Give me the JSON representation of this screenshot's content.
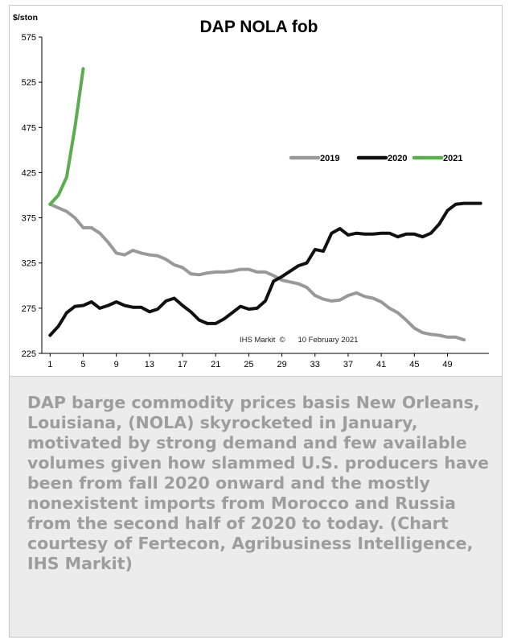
{
  "caption": "DAP barge commodity prices basis New Orleans, Louisiana, (NOLA) skyrocketed in January, motivated by strong demand and few available volumes given how slammed U.S. producers have been from fall 2020 onward and the mostly nonexistent imports from Morocco and Russia from the second half of 2020 to today. (Chart courtesy of Fertecon, Agribusiness Intelligence, IHS Markit)",
  "chart_data": {
    "type": "line",
    "title": "DAP NOLA fob",
    "ylabel": "$/ston",
    "xlabel": "",
    "ylim": [
      225,
      575
    ],
    "yticks": [
      225,
      275,
      325,
      375,
      425,
      475,
      525,
      575
    ],
    "xlim": [
      0,
      54
    ],
    "xticks": [
      1,
      5,
      9,
      13,
      17,
      21,
      25,
      29,
      33,
      37,
      41,
      45,
      49
    ],
    "grid": false,
    "legend": "right",
    "source_note": "IHS Markit  ©      10 February 2021",
    "series": [
      {
        "name": "2019",
        "color": "#999999",
        "x": [
          1,
          2,
          3,
          4,
          5,
          6,
          7,
          8,
          9,
          10,
          11,
          12,
          13,
          14,
          15,
          16,
          17,
          18,
          19,
          20,
          21,
          22,
          23,
          24,
          25,
          26,
          27,
          28,
          29,
          30,
          31,
          32,
          33,
          34,
          35,
          36,
          37,
          38,
          39,
          40,
          41,
          42,
          43,
          44,
          45,
          46,
          47,
          48,
          49,
          50,
          51
        ],
        "values": [
          390,
          386,
          382,
          375,
          364,
          364,
          358,
          348,
          336,
          334,
          339,
          336,
          334,
          333,
          329,
          323,
          320,
          313,
          312,
          314,
          315,
          315,
          316,
          318,
          318,
          315,
          315,
          311,
          306,
          304,
          302,
          298,
          289,
          285,
          283,
          284,
          289,
          292,
          288,
          286,
          282,
          275,
          270,
          262,
          253,
          248,
          246,
          245,
          243,
          243,
          240
        ]
      },
      {
        "name": "2020",
        "color": "#111111",
        "x": [
          1,
          2,
          3,
          4,
          5,
          6,
          7,
          8,
          9,
          10,
          11,
          12,
          13,
          14,
          15,
          16,
          17,
          18,
          19,
          20,
          21,
          22,
          23,
          24,
          25,
          26,
          27,
          28,
          29,
          30,
          31,
          32,
          33,
          34,
          35,
          36,
          37,
          38,
          39,
          40,
          41,
          42,
          43,
          44,
          45,
          46,
          47,
          48,
          49,
          50,
          51,
          52,
          53
        ],
        "values": [
          245,
          255,
          270,
          277,
          278,
          282,
          275,
          278,
          282,
          278,
          276,
          276,
          271,
          274,
          283,
          286,
          278,
          271,
          262,
          258,
          258,
          263,
          270,
          277,
          274,
          275,
          283,
          305,
          310,
          316,
          322,
          325,
          340,
          338,
          358,
          363,
          356,
          358,
          357,
          357,
          358,
          358,
          354,
          357,
          357,
          354,
          358,
          368,
          383,
          390,
          391,
          391,
          391
        ]
      },
      {
        "name": "2021",
        "color": "#5cad4f",
        "x": [
          1,
          2,
          3,
          4,
          5
        ],
        "values": [
          390,
          400,
          420,
          475,
          540
        ]
      }
    ]
  }
}
